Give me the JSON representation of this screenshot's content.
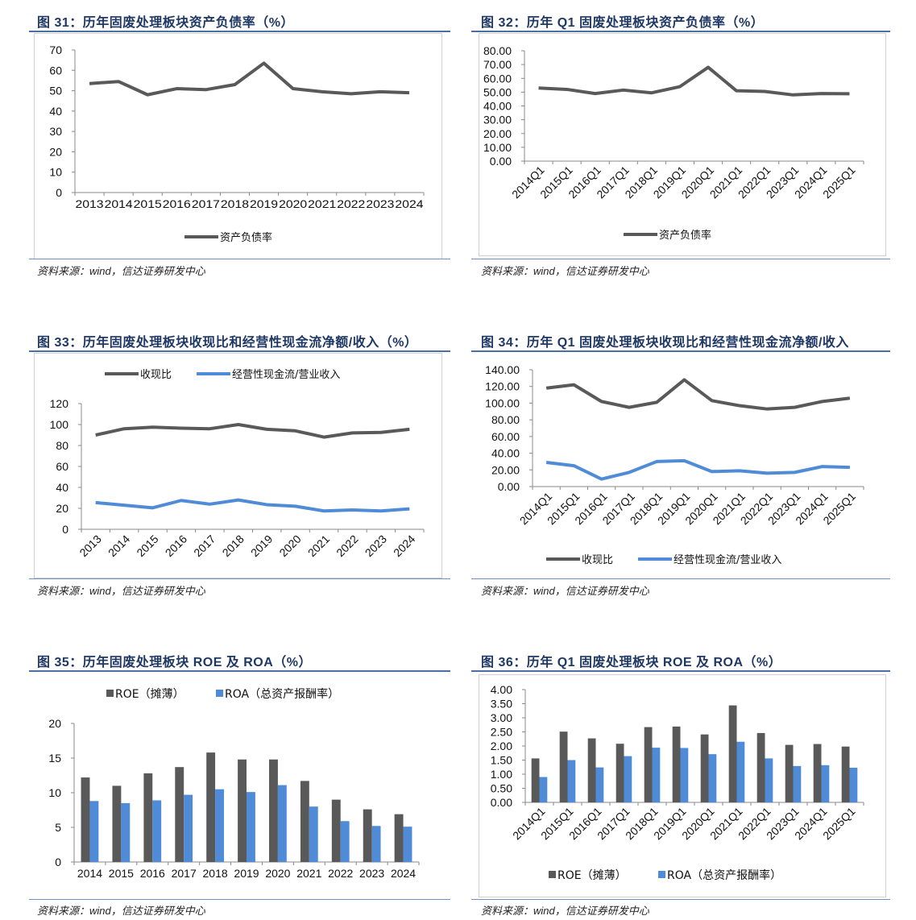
{
  "source": "资料来源：wind，信达证券研发中心",
  "colors": {
    "gray": "#595959",
    "blue": "#4f8bd6",
    "title": "#1f3864",
    "rule": "#4a6fa5"
  },
  "figures": [
    {
      "title": "图  31：历年固废处理板块资产负债率（%）",
      "chart_data": {
        "type": "line",
        "categories": [
          "2013",
          "2014",
          "2015",
          "2016",
          "2017",
          "2018",
          "2019",
          "2020",
          "2021",
          "2022",
          "2023",
          "2024"
        ],
        "series": [
          {
            "name": "资产负债率",
            "values": [
              53.5,
              54.5,
              48,
              51,
              50.5,
              53,
              63.5,
              51,
              49.5,
              48.5,
              49.5,
              49
            ],
            "color": "#595959"
          }
        ],
        "ylim": [
          0,
          70
        ],
        "yticks": [
          "0",
          "10",
          "20",
          "30",
          "40",
          "50",
          "60",
          "70"
        ],
        "legend": "bottom"
      }
    },
    {
      "title": "图  32：历年 Q1 固废处理板块资产负债率（%）",
      "chart_data": {
        "type": "line",
        "categories": [
          "2014Q1",
          "2015Q1",
          "2016Q1",
          "2017Q1",
          "2018Q1",
          "2019Q1",
          "2020Q1",
          "2021Q1",
          "2022Q1",
          "2023Q1",
          "2024Q1",
          "2025Q1"
        ],
        "series": [
          {
            "name": "资产负债率",
            "values": [
              53,
              52,
              49,
              51.5,
              49.5,
              54,
              68,
              51,
              50.5,
              48,
              49,
              48.8
            ],
            "color": "#595959"
          }
        ],
        "ylim": [
          0,
          80
        ],
        "yticks": [
          "0.00",
          "10.00",
          "20.00",
          "30.00",
          "40.00",
          "50.00",
          "60.00",
          "70.00",
          "80.00"
        ],
        "legend": "bottom"
      }
    },
    {
      "title": "图  33：历年固废处理板块收现比和经营性现金流净额/收入（%）",
      "chart_data": {
        "type": "line",
        "categories": [
          "2013",
          "2014",
          "2015",
          "2016",
          "2017",
          "2018",
          "2019",
          "2020",
          "2021",
          "2022",
          "2023",
          "2024"
        ],
        "series": [
          {
            "name": "收现比",
            "values": [
              90,
              96,
              97.5,
              96.5,
              96,
              100,
              95.5,
              94,
              88,
              92,
              92.5,
              95.5
            ],
            "color": "#595959"
          },
          {
            "name": "经营性现金流/营业收入",
            "values": [
              25.5,
              23,
              20.5,
              27.5,
              24,
              28,
              23.5,
              22,
              17.5,
              18.5,
              17.5,
              19.5
            ],
            "color": "#4f8bd6"
          }
        ],
        "ylim": [
          0,
          120
        ],
        "yticks": [
          "0",
          "20",
          "40",
          "60",
          "80",
          "100",
          "120"
        ],
        "legend": "top"
      }
    },
    {
      "title": "图  34：历年 Q1 固废处理板块收现比和经营性现金流净额/收入",
      "chart_data": {
        "type": "line",
        "categories": [
          "2014Q1",
          "2015Q1",
          "2016Q1",
          "2017Q1",
          "2018Q1",
          "2019Q1",
          "2020Q1",
          "2021Q1",
          "2022Q1",
          "2023Q1",
          "2024Q1",
          "2025Q1"
        ],
        "series": [
          {
            "name": "收现比",
            "values": [
              118,
              122,
              102,
              95,
              101,
              128,
              103,
              97,
              93,
              95,
              102,
              106
            ],
            "color": "#595959"
          },
          {
            "name": "经营性现金流/营业收入",
            "values": [
              29,
              25,
              9,
              17,
              30,
              31,
              18,
              19,
              16,
              17,
              24,
              23
            ],
            "color": "#4f8bd6"
          }
        ],
        "ylim": [
          0,
          140
        ],
        "yticks": [
          "0.00",
          "20.00",
          "40.00",
          "60.00",
          "80.00",
          "100.00",
          "120.00",
          "140.00"
        ],
        "legend": "bottom"
      }
    },
    {
      "title": "图  35：历年固废处理板块 ROE 及 ROA（%）",
      "chart_data": {
        "type": "bar",
        "categories": [
          "2014",
          "2015",
          "2016",
          "2017",
          "2018",
          "2019",
          "2020",
          "2021",
          "2022",
          "2023",
          "2024"
        ],
        "series": [
          {
            "name": "ROE（摊薄）",
            "values": [
              12.2,
              11,
              12.8,
              13.7,
              15.8,
              14.8,
              14.8,
              11.7,
              9,
              7.6,
              6.9
            ],
            "color": "#595959"
          },
          {
            "name": "ROA（总资产报酬率）",
            "values": [
              8.8,
              8.5,
              8.9,
              9.7,
              10.5,
              10.1,
              11.1,
              8,
              5.9,
              5.2,
              5.1
            ],
            "color": "#4f8bd6"
          }
        ],
        "ylim": [
          0,
          20
        ],
        "yticks": [
          "0",
          "5",
          "10",
          "15",
          "20"
        ],
        "legend": "top"
      }
    },
    {
      "title": "图  36：历年 Q1 固废处理板块 ROE 及 ROA（%）",
      "chart_data": {
        "type": "bar",
        "categories": [
          "2014Q1",
          "2015Q1",
          "2016Q1",
          "2017Q1",
          "2018Q1",
          "2019Q1",
          "2020Q1",
          "2021Q1",
          "2022Q1",
          "2023Q1",
          "2024Q1",
          "2025Q1"
        ],
        "series": [
          {
            "name": "ROE（摊薄）",
            "values": [
              1.56,
              2.51,
              2.27,
              2.08,
              2.67,
              2.69,
              2.41,
              3.44,
              2.46,
              2.04,
              2.07,
              1.98
            ],
            "color": "#595959"
          },
          {
            "name": "ROA（总资产报酬率）",
            "values": [
              0.9,
              1.5,
              1.24,
              1.64,
              1.94,
              1.93,
              1.71,
              2.15,
              1.56,
              1.29,
              1.32,
              1.23
            ],
            "color": "#4f8bd6"
          }
        ],
        "ylim": [
          0,
          4
        ],
        "yticks": [
          "0.00",
          "0.50",
          "1.00",
          "1.50",
          "2.00",
          "2.50",
          "3.00",
          "3.50",
          "4.00"
        ],
        "legend": "bottom"
      }
    }
  ]
}
